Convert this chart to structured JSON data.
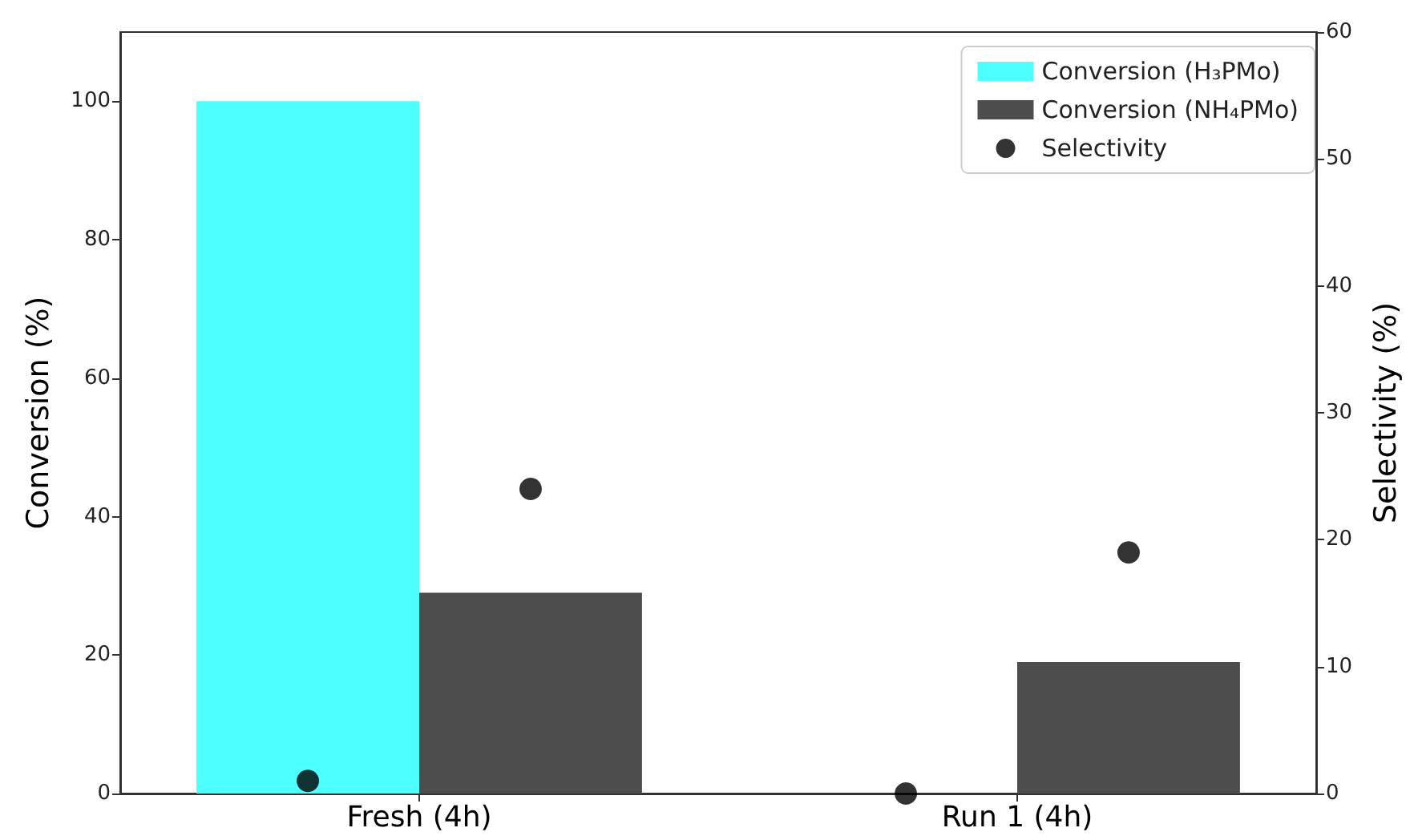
{
  "chart_data": {
    "type": "bar",
    "categories": [
      "Fresh (4h)",
      "Run 1 (4h)"
    ],
    "ylabel": "Conversion (%)",
    "y2label": "Selectivity (%)",
    "ylim": [
      0,
      110
    ],
    "yticks": [
      0,
      20,
      40,
      60,
      80,
      100
    ],
    "y2lim": [
      0,
      60
    ],
    "y2ticks": [
      0,
      10,
      20,
      30,
      40,
      50,
      60
    ],
    "legend": "top right",
    "marker": "circle",
    "series": [
      {
        "name": "Conversion (H₃PMo)",
        "color": "#4dffff",
        "values": [
          100,
          0
        ]
      },
      {
        "name": "Conversion (NH₄PMo)",
        "color": "#4d4d4d",
        "values": [
          29,
          19
        ]
      },
      {
        "name": "Selectivity",
        "type": "scatter",
        "color": "#000000",
        "axis": "y2",
        "x": [
          "Fresh (4h)",
          "Fresh (4h)",
          "Run 1 (4h)",
          "Run 1 (4h)"
        ],
        "values": [
          1,
          24,
          0,
          19
        ]
      }
    ]
  }
}
